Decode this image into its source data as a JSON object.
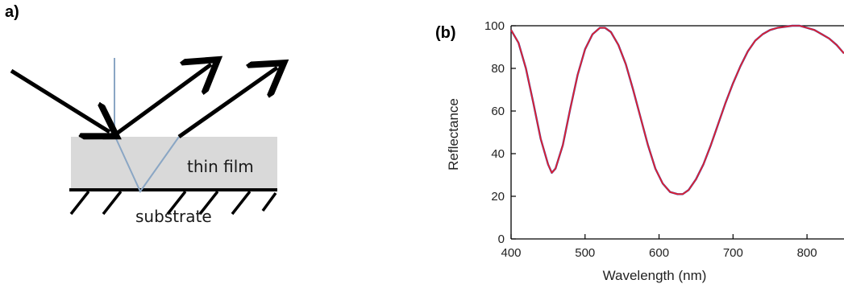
{
  "panel_a": {
    "label": "a)",
    "film_label": "thin film",
    "substrate_label": "substrate"
  },
  "panel_b": {
    "label": "(b)"
  },
  "chart_data": {
    "type": "line",
    "xlabel": "Wavelength (nm)",
    "ylabel": "Reflectance",
    "xlim": [
      400,
      850
    ],
    "ylim": [
      0,
      100
    ],
    "xticks": [
      "400",
      "500",
      "600",
      "700",
      "800"
    ],
    "yticks": [
      "0",
      "20",
      "40",
      "60",
      "80",
      "100"
    ],
    "grid": false,
    "colors": {
      "measured": "#3a3aa0",
      "fit": "#e8202a"
    },
    "x": [
      400,
      410,
      420,
      430,
      440,
      450,
      455,
      460,
      470,
      480,
      490,
      500,
      510,
      520,
      527,
      535,
      545,
      555,
      565,
      575,
      585,
      595,
      605,
      615,
      625,
      632,
      640,
      650,
      660,
      670,
      680,
      690,
      700,
      710,
      720,
      730,
      740,
      750,
      760,
      770,
      780,
      790,
      800,
      810,
      820,
      830,
      840,
      850
    ],
    "series": [
      {
        "values": [
          98,
          92,
          80,
          64,
          47,
          35,
          31,
          33,
          44,
          61,
          77,
          89,
          96,
          99,
          99,
          97,
          91,
          82,
          70,
          57,
          44,
          33,
          26,
          22,
          21,
          21,
          23,
          28,
          35,
          44,
          54,
          64,
          73,
          81,
          88,
          93,
          96,
          98,
          99,
          99.5,
          100,
          100,
          99,
          98,
          96,
          94,
          91,
          87
        ]
      }
    ]
  }
}
